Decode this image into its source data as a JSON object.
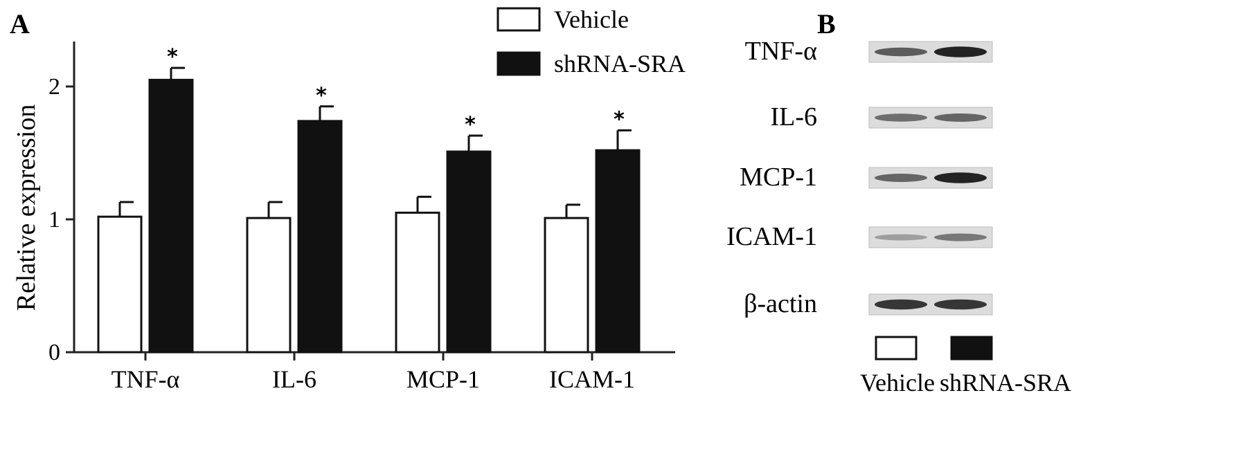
{
  "panel_a_label": "A",
  "panel_b_label": "B",
  "chart_data": {
    "type": "bar",
    "title": "",
    "xlabel": "",
    "ylabel": "Relative expression",
    "ylim": [
      0,
      2.2
    ],
    "yticks": [
      "0",
      "1",
      "2"
    ],
    "categories": [
      "TNF-α",
      "IL-6",
      "MCP-1",
      "ICAM-1"
    ],
    "series": [
      {
        "name": "Vehicle",
        "color": "#ffffff",
        "values": [
          1.02,
          1.01,
          1.05,
          1.01
        ],
        "errors": [
          0.11,
          0.12,
          0.12,
          0.1
        ]
      },
      {
        "name": "shRNA-SRA",
        "color": "#111111",
        "values": [
          2.05,
          1.74,
          1.51,
          1.52
        ],
        "errors": [
          0.09,
          0.11,
          0.12,
          0.15
        ]
      }
    ],
    "significance": [
      "*",
      "*",
      "*",
      "*"
    ],
    "legend": "top-right",
    "grid": false
  },
  "blot": {
    "rows": [
      {
        "label": "TNF-α",
        "vehicle": 0.65,
        "shrna": 0.95
      },
      {
        "label": "IL-6",
        "vehicle": 0.55,
        "shrna": 0.6
      },
      {
        "label": "MCP-1",
        "vehicle": 0.6,
        "shrna": 0.95
      },
      {
        "label": "ICAM-1",
        "vehicle": 0.3,
        "shrna": 0.5
      },
      {
        "label": "β-actin",
        "vehicle": 0.85,
        "shrna": 0.85
      }
    ],
    "legend": [
      "Vehicle",
      "shRNA-SRA"
    ]
  }
}
